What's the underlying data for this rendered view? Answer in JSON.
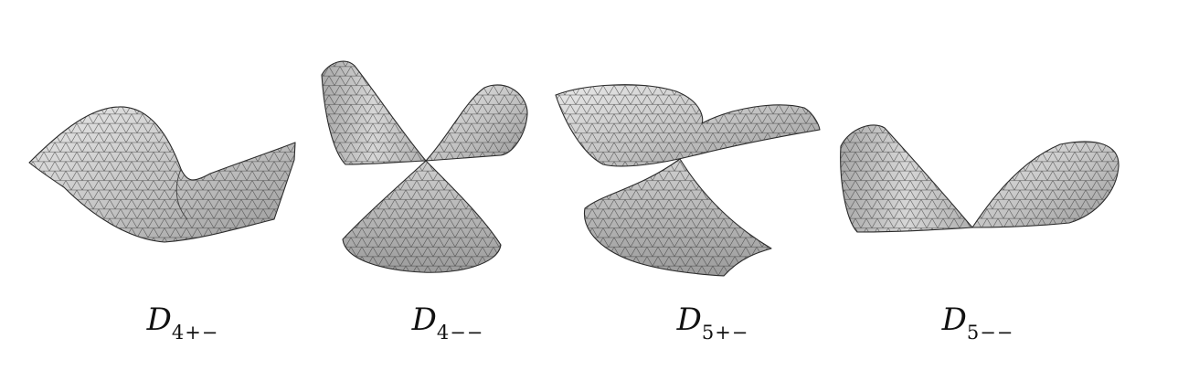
{
  "figure": {
    "panels": [
      {
        "id": "d4pm",
        "label_main": "D",
        "label_sub": "4+−"
      },
      {
        "id": "d4mm",
        "label_main": "D",
        "label_sub": "4−−"
      },
      {
        "id": "d5pm",
        "label_main": "D",
        "label_sub": "5+−"
      },
      {
        "id": "d5mm",
        "label_main": "D",
        "label_sub": "5−−"
      }
    ],
    "colors": {
      "surface_light": "#e6e6e6",
      "surface_mid": "#bdbdbd",
      "surface_dark": "#8c8c8c",
      "mesh": "#333333"
    }
  }
}
